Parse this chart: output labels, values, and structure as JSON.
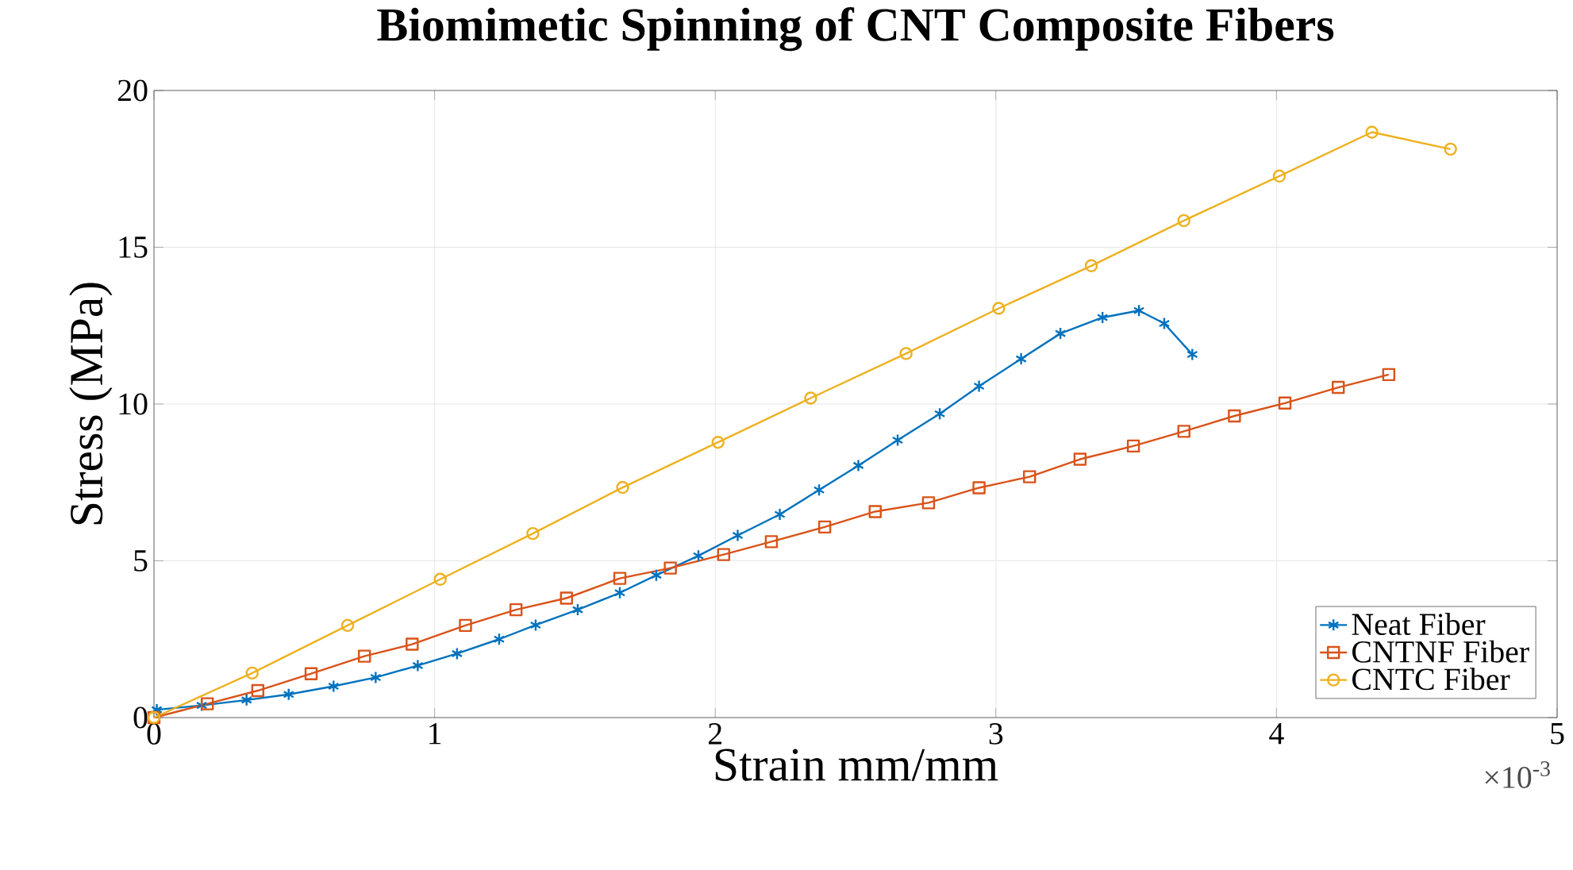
{
  "chart_data": {
    "type": "line",
    "title": "Biomimetic Spinning of CNT Composite Fibers",
    "xlabel": "Strain mm/mm",
    "ylabel": "Stress (MPa)",
    "annotations": [
      "×10$^{-3}$"
    ],
    "xlim": [
      0,
      5
    ],
    "ylim": [
      0,
      20
    ],
    "xticks": [
      0,
      1,
      2,
      3,
      4,
      5
    ],
    "yticks": [
      0,
      5,
      10,
      15,
      20
    ],
    "grid": true,
    "legend": "bottom right",
    "series": [
      {
        "name": "Neat Fiber",
        "color": "#0072bd",
        "marker": "cross",
        "x": [
          0.01,
          0.17,
          0.33,
          0.48,
          0.64,
          0.79,
          0.94,
          1.08,
          1.23,
          1.36,
          1.51,
          1.66,
          1.79,
          1.94,
          2.08,
          2.23,
          2.37,
          2.51,
          2.65,
          2.8,
          2.94,
          3.09,
          3.23,
          3.38,
          3.51,
          3.6,
          3.7
        ],
        "values": [
          0.25,
          0.39,
          0.56,
          0.74,
          1.0,
          1.28,
          1.66,
          2.04,
          2.5,
          2.95,
          3.44,
          3.98,
          4.54,
          5.16,
          5.81,
          6.48,
          7.26,
          8.04,
          8.85,
          9.69,
          10.57,
          11.44,
          12.25,
          12.76,
          12.98,
          12.57,
          11.58
        ]
      },
      {
        "name": "CNTNF Fiber",
        "color": "#d95319",
        "marker": "square",
        "x": [
          0,
          0.19,
          0.37,
          0.56,
          0.75,
          0.92,
          1.11,
          1.29,
          1.47,
          1.66,
          1.84,
          2.03,
          2.2,
          2.39,
          2.57,
          2.76,
          2.94,
          3.12,
          3.3,
          3.49,
          3.67,
          3.85,
          4.03,
          4.22,
          4.4
        ],
        "values": [
          0,
          0.44,
          0.86,
          1.4,
          1.96,
          2.34,
          2.94,
          3.44,
          3.81,
          4.44,
          4.77,
          5.2,
          5.61,
          6.08,
          6.57,
          6.85,
          7.33,
          7.68,
          8.24,
          8.66,
          9.13,
          9.62,
          10.03,
          10.53,
          10.94
        ]
      },
      {
        "name": "CNTC Fiber",
        "color": "#edb120",
        "marker": "circle",
        "x": [
          0,
          0.35,
          0.69,
          1.02,
          1.35,
          1.67,
          2.01,
          2.34,
          2.68,
          3.01,
          3.34,
          3.67,
          4.01,
          4.34,
          4.62
        ],
        "values": [
          0,
          1.42,
          2.94,
          4.41,
          5.87,
          7.34,
          8.78,
          10.19,
          11.61,
          13.05,
          14.41,
          15.85,
          17.27,
          18.67,
          18.13
        ]
      }
    ]
  }
}
